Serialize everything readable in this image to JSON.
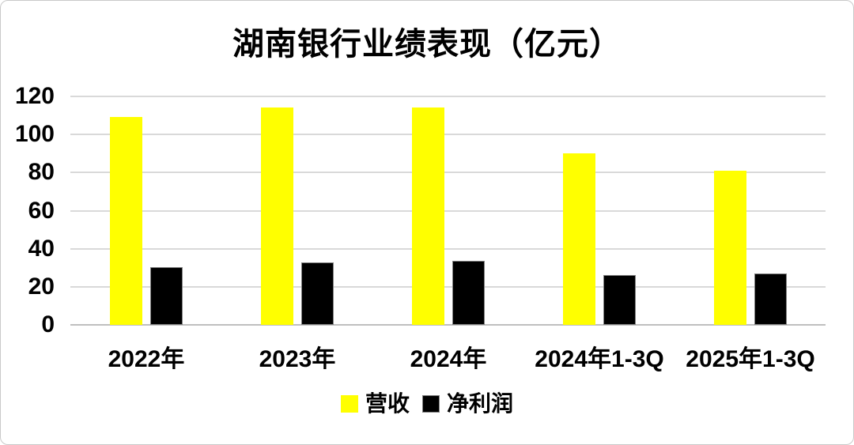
{
  "title": "湖南银行业绩表现（亿元）",
  "chart_data": {
    "type": "bar",
    "title": "湖南银行业绩表现（亿元）",
    "categories": [
      "2022年",
      "2023年",
      "2024年",
      "2024年1-3Q",
      "2025年1-3Q"
    ],
    "series": [
      {
        "name": "营收",
        "color": "#ffff00",
        "values": [
          109,
          114,
          114,
          90,
          81
        ]
      },
      {
        "name": "净利润",
        "color": "#000000",
        "values": [
          30.5,
          33,
          33.5,
          26,
          27
        ]
      }
    ],
    "ylim": [
      0,
      120
    ],
    "yticks": [
      0,
      20,
      40,
      60,
      80,
      100,
      120
    ],
    "grid": true,
    "gridline_color": "#d9d9d9",
    "legend_position": "bottom",
    "unit": "亿元"
  },
  "colors": {
    "revenue": "#ffff00",
    "net_profit": "#000000",
    "bar_outline": "#7f7f7f",
    "frame_border": "#c9c9c9"
  }
}
